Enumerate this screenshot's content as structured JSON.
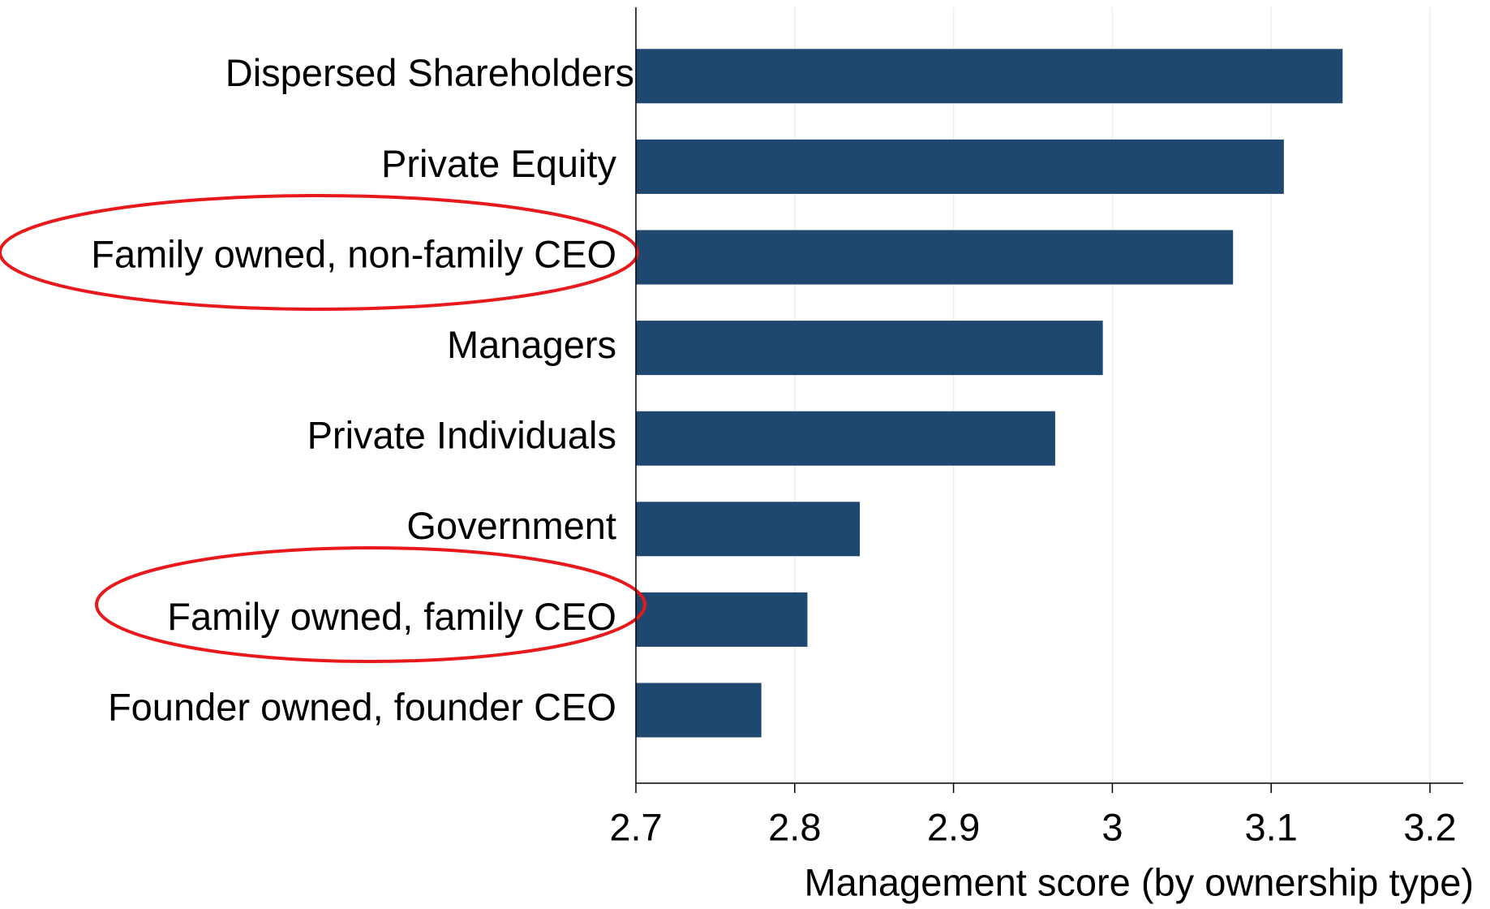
{
  "chart_data": {
    "type": "barh",
    "categories": [
      "Dispersed Shareholders",
      "Private Equity",
      "Family owned, non-family CEO",
      "Managers",
      "Private Individuals",
      "Government",
      "Family owned, family CEO",
      "Founder owned, founder CEO"
    ],
    "values": [
      3.145,
      3.108,
      3.076,
      2.994,
      2.964,
      2.841,
      2.808,
      2.779
    ],
    "color": "#1f4870",
    "xlim": [
      2.7,
      3.2
    ],
    "xticks": [
      2.7,
      2.8,
      2.9,
      3,
      3.1,
      3.2
    ],
    "xlabel": "Management score (by ownership type)",
    "grid": true
  }
}
